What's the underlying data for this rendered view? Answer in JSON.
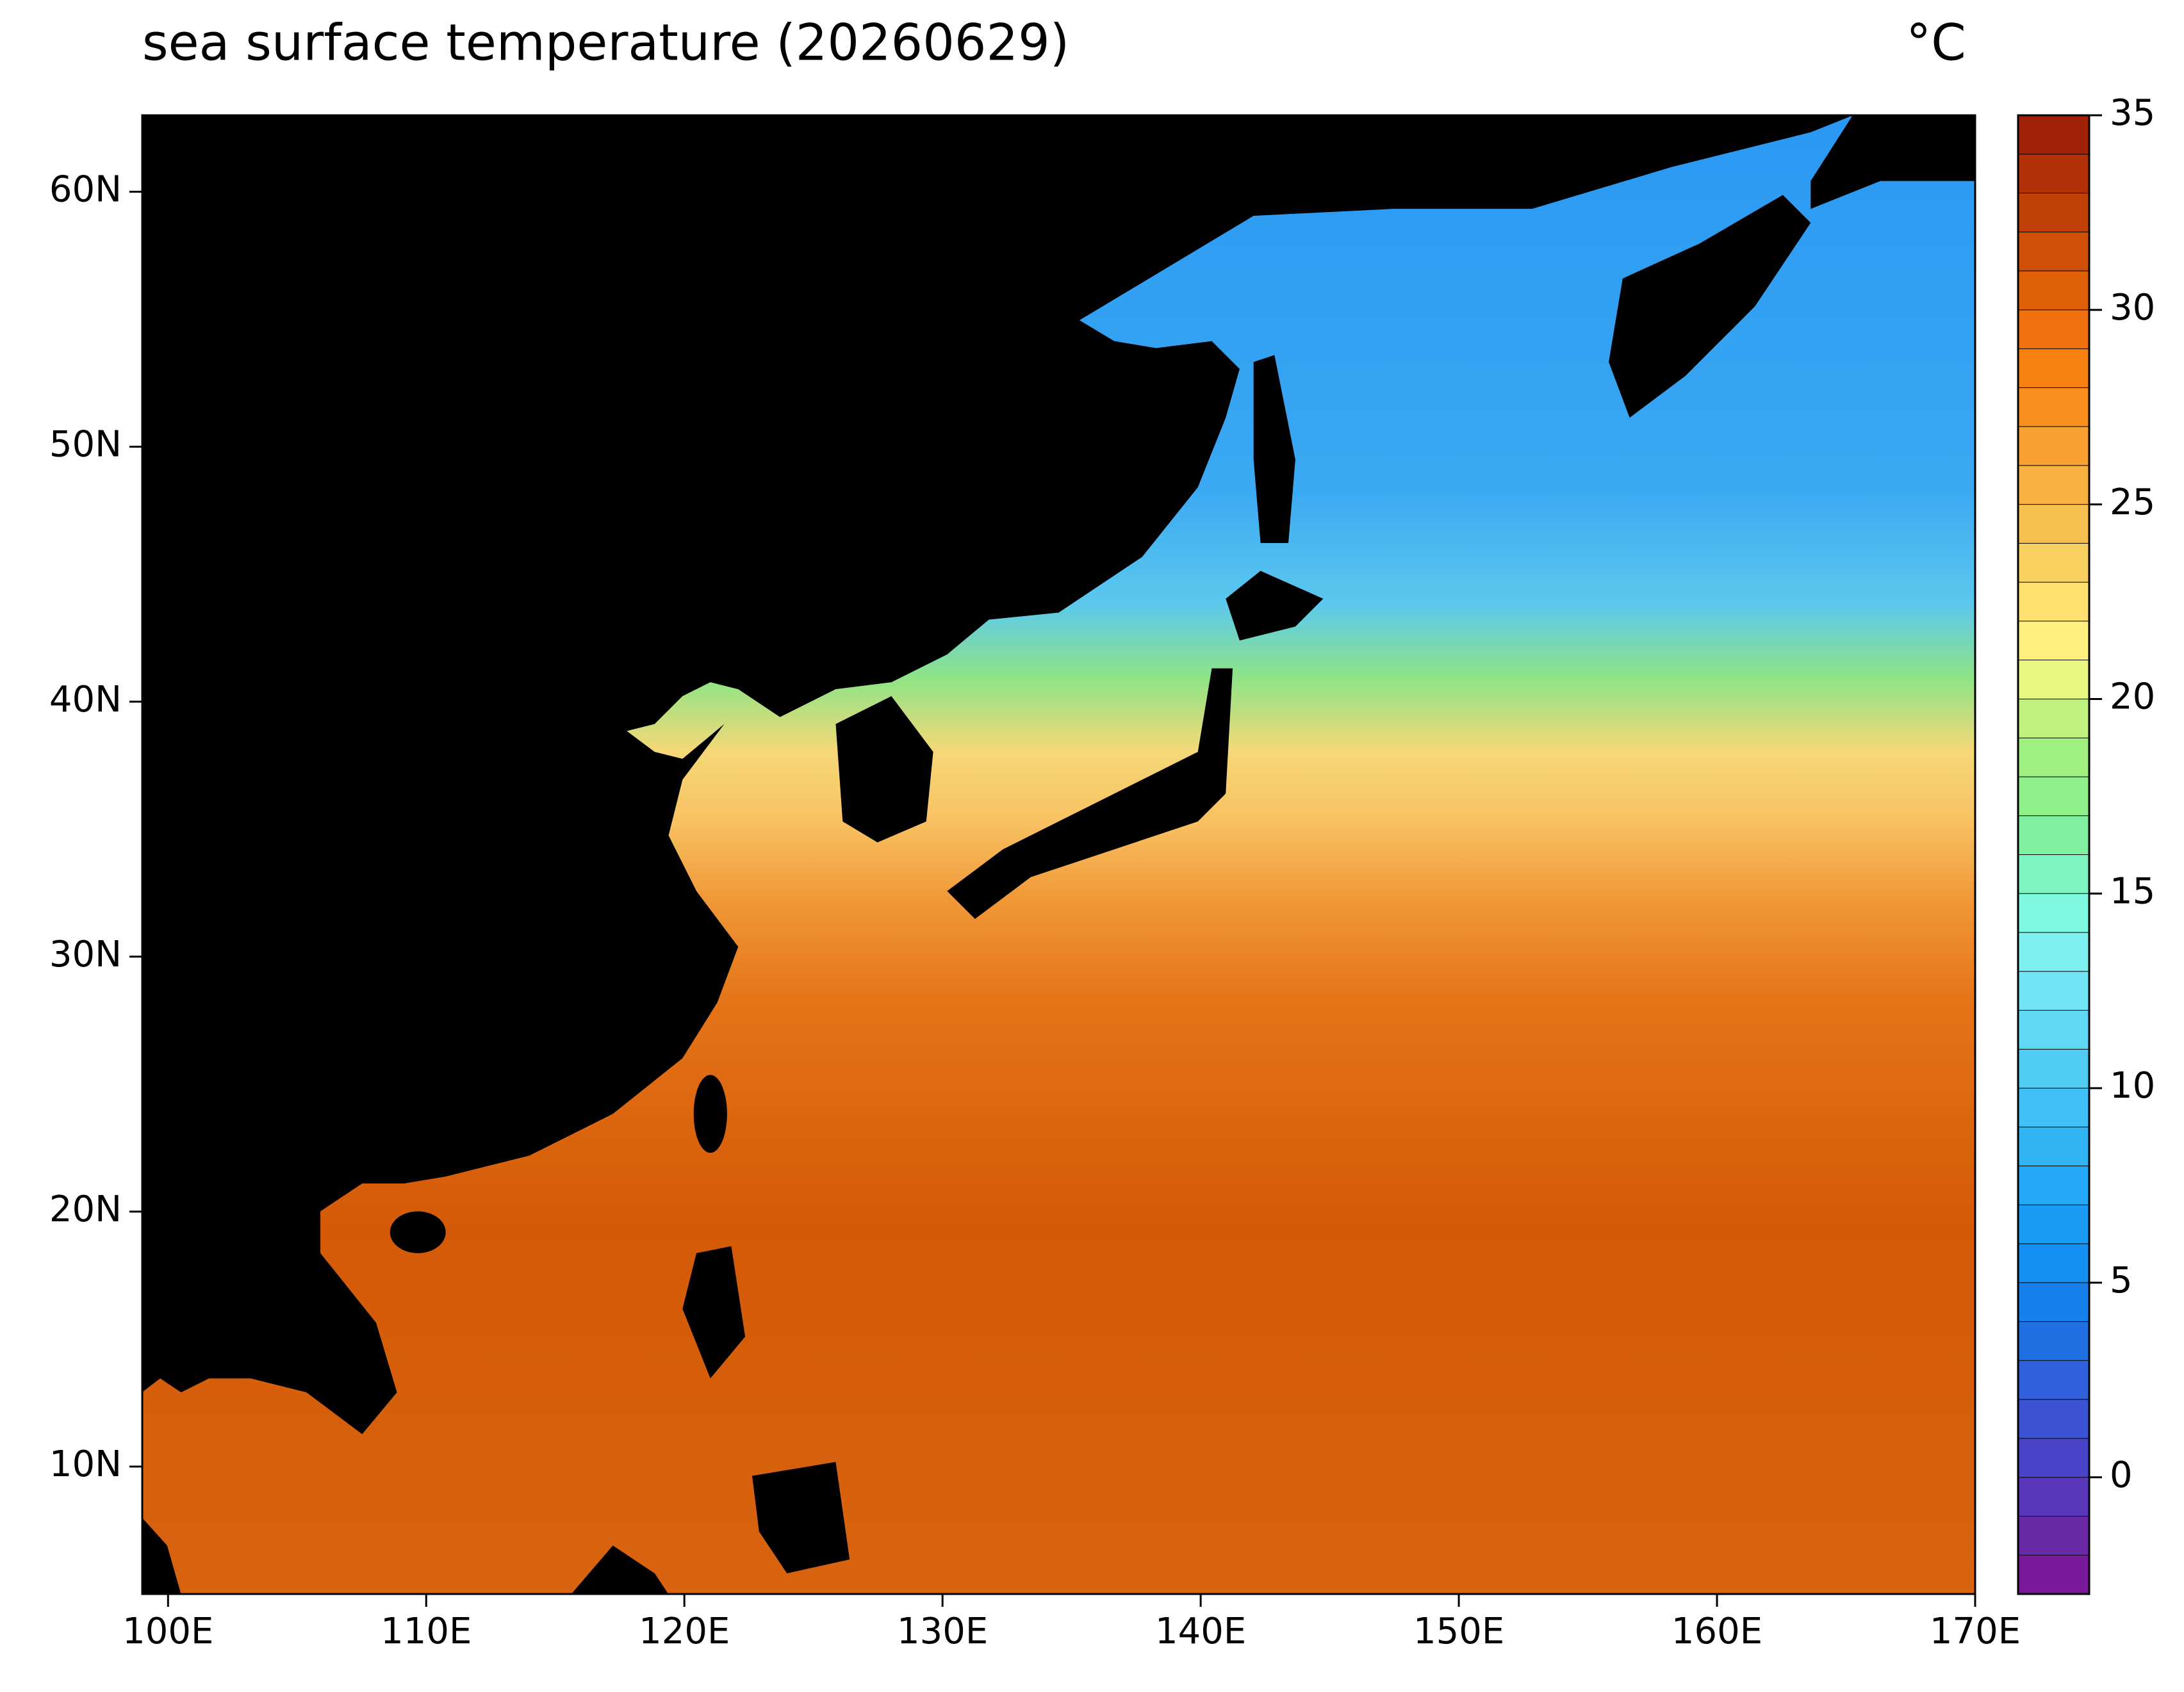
{
  "chart_data": {
    "type": "map",
    "title": "sea surface temperature (20260629)",
    "colorbar_label": "°C",
    "xlim": [
      99,
      170
    ],
    "xticks": [
      {
        "value": 100,
        "label": "100E"
      },
      {
        "value": 110,
        "label": "110E"
      },
      {
        "value": 120,
        "label": "120E"
      },
      {
        "value": 130,
        "label": "130E"
      },
      {
        "value": 140,
        "label": "140E"
      },
      {
        "value": 150,
        "label": "150E"
      },
      {
        "value": 160,
        "label": "160E"
      },
      {
        "value": 170,
        "label": "170E"
      }
    ],
    "ylim": [
      5,
      63
    ],
    "yticks": [
      {
        "value": 10,
        "label": "10N"
      },
      {
        "value": 20,
        "label": "20N"
      },
      {
        "value": 30,
        "label": "30N"
      },
      {
        "value": 40,
        "label": "40N"
      },
      {
        "value": 50,
        "label": "50N"
      },
      {
        "value": 60,
        "label": "60N"
      }
    ],
    "clim": [
      -3,
      35
    ],
    "cticks": [
      0,
      5,
      10,
      15,
      20,
      25,
      30,
      35
    ],
    "colors": [
      "#7a1a9a",
      "#6a2aa8",
      "#5a36b8",
      "#4a44c8",
      "#3c52d4",
      "#3060dc",
      "#2070e4",
      "#1880ec",
      "#1490f4",
      "#1a9cf4",
      "#22a8f4",
      "#30b4f4",
      "#40c0f4",
      "#50ccf4",
      "#60d8f4",
      "#70e4f4",
      "#7ff0f0",
      "#7ff8e0",
      "#7ef4c0",
      "#80f0a0",
      "#8ef08a",
      "#a0f080",
      "#c0f080",
      "#e8f880",
      "#fff080",
      "#ffe070",
      "#f8d060",
      "#f8c050",
      "#f8b040",
      "#f8a030",
      "#f89020",
      "#f88010",
      "#f07010",
      "#e06008",
      "#d05008",
      "#c04008",
      "#b03008",
      "#a02008"
    ]
  }
}
